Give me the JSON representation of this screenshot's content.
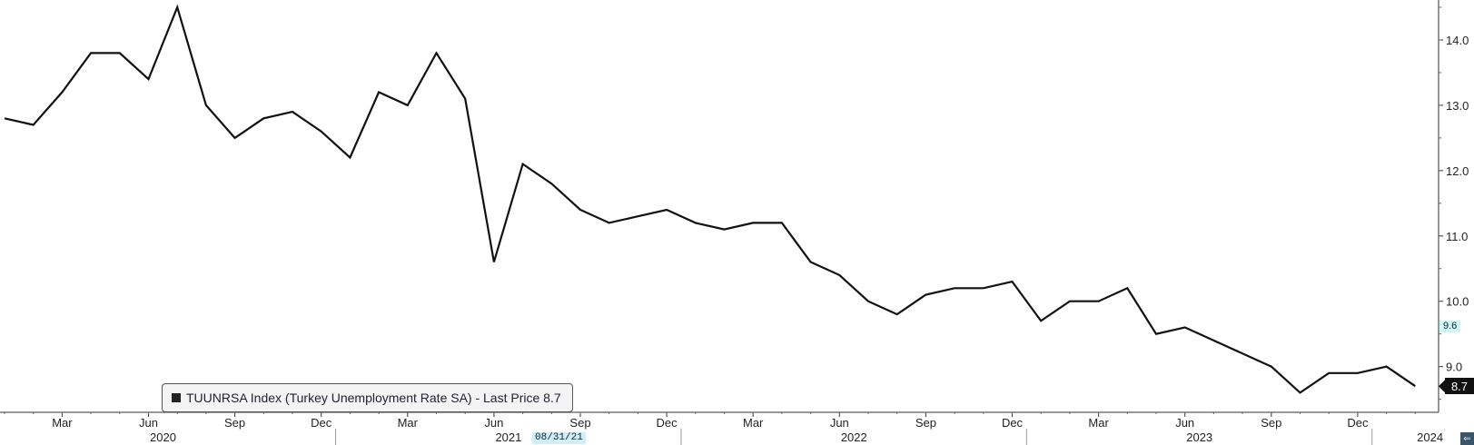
{
  "chart_data": {
    "type": "line",
    "title": "",
    "xlabel": "",
    "ylabel": "",
    "x": [
      "2020-01",
      "2020-02",
      "2020-03",
      "2020-04",
      "2020-05",
      "2020-06",
      "2020-07",
      "2020-08",
      "2020-09",
      "2020-10",
      "2020-11",
      "2020-12",
      "2021-01",
      "2021-02",
      "2021-03",
      "2021-04",
      "2021-05",
      "2021-06",
      "2021-07",
      "2021-08",
      "2021-09",
      "2021-10",
      "2021-11",
      "2021-12",
      "2022-01",
      "2022-02",
      "2022-03",
      "2022-04",
      "2022-05",
      "2022-06",
      "2022-07",
      "2022-08",
      "2022-09",
      "2022-10",
      "2022-11",
      "2022-12",
      "2023-01",
      "2023-02",
      "2023-03",
      "2023-04",
      "2023-05",
      "2023-06",
      "2023-07",
      "2023-08",
      "2023-09",
      "2023-10",
      "2023-11",
      "2023-12",
      "2024-01",
      "2024-02"
    ],
    "series": [
      {
        "name": "TUUNRSA Index (Turkey Unemployment Rate SA) - Last Price 8.7",
        "values": [
          12.8,
          12.7,
          13.2,
          13.8,
          13.8,
          13.4,
          14.5,
          13.0,
          12.5,
          12.8,
          12.9,
          12.6,
          12.2,
          13.2,
          13.0,
          13.8,
          13.1,
          10.6,
          12.1,
          11.8,
          11.4,
          11.2,
          11.3,
          11.4,
          11.2,
          11.1,
          11.2,
          11.2,
          10.6,
          10.4,
          10.0,
          9.8,
          10.1,
          10.2,
          10.2,
          10.3,
          9.7,
          10.0,
          10.0,
          10.2,
          9.5,
          9.6,
          9.4,
          9.2,
          9.0,
          8.6,
          8.9,
          8.9,
          9.0,
          8.7
        ]
      }
    ],
    "ylim": [
      8.3,
      14.5
    ],
    "yticks": [
      "9.0",
      "10.0",
      "11.0",
      "12.0",
      "13.0",
      "14.0"
    ],
    "month_ticks": [
      "Mar",
      "Jun",
      "Sep",
      "Dec",
      "Mar",
      "Jun",
      "Sep",
      "Dec",
      "Mar",
      "Jun",
      "Sep",
      "Dec",
      "Mar",
      "Jun",
      "Sep",
      "Dec"
    ],
    "month_tick_months": [
      "2020-03",
      "2020-06",
      "2020-09",
      "2020-12",
      "2021-03",
      "2021-06",
      "2021-09",
      "2021-12",
      "2022-03",
      "2022-06",
      "2022-09",
      "2022-12",
      "2023-03",
      "2023-06",
      "2023-09",
      "2023-12"
    ],
    "year_labels": [
      "2020",
      "2021",
      "2022",
      "2023",
      "2024"
    ],
    "year_label_months": [
      "2020-06",
      "2021-06",
      "2022-06",
      "2023-06",
      "2024-01"
    ],
    "legend": "TUUNRSA Index (Turkey Unemployment Rate SA) - Last Price 8.7",
    "last_value_label": "8.7",
    "marker_label": "9.6",
    "marker_value": 9.6,
    "date_stamp": "08/31/21",
    "grid": false,
    "legend_position": "bottom-left",
    "line_color": "#111111"
  },
  "ui": {
    "corner_button_icon": "arrow-left-icon",
    "corner_button_glyph": "⇐"
  }
}
